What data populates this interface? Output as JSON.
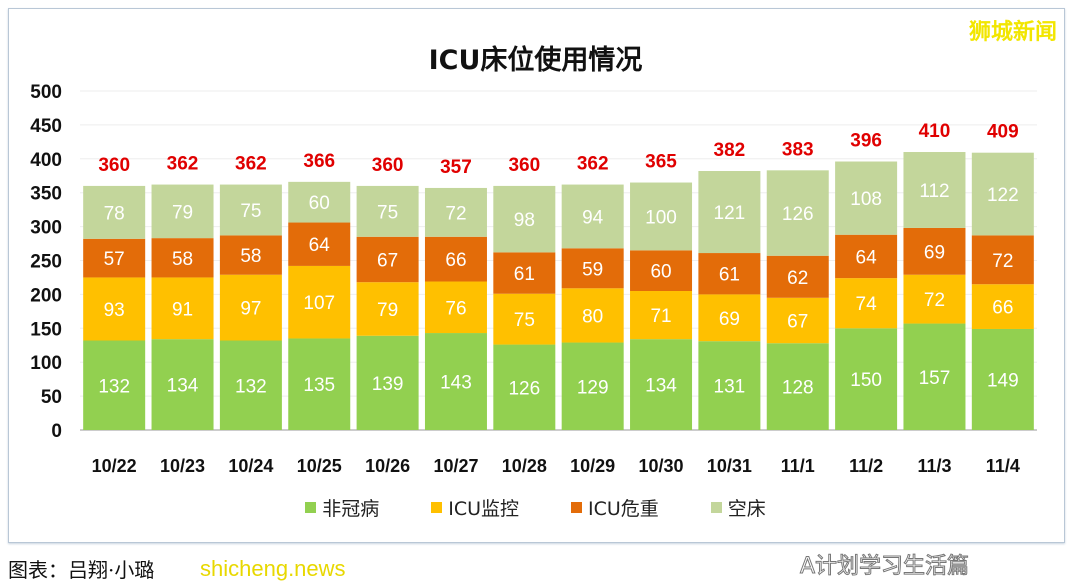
{
  "brand": "狮城新闻",
  "caption": "图表：吕翔·小璐",
  "watermarks": [
    "shicheng.news",
    "A计划学习生活篇"
  ],
  "chart_data": {
    "type": "bar",
    "stacked": true,
    "title": "ICU床位使用情况",
    "categories": [
      "10/22",
      "10/23",
      "10/24",
      "10/25",
      "10/26",
      "10/27",
      "10/28",
      "10/29",
      "10/30",
      "10/31",
      "11/1",
      "11/2",
      "11/3",
      "11/4"
    ],
    "series": [
      {
        "name": "非冠病",
        "color": "#92d050",
        "values": [
          132,
          134,
          132,
          135,
          139,
          143,
          126,
          129,
          134,
          131,
          128,
          150,
          157,
          149
        ]
      },
      {
        "name": "ICU监控",
        "color": "#ffc000",
        "values": [
          93,
          91,
          97,
          107,
          79,
          76,
          75,
          80,
          71,
          69,
          67,
          74,
          72,
          66
        ]
      },
      {
        "name": "ICU危重",
        "color": "#e36c09",
        "values": [
          57,
          58,
          58,
          64,
          67,
          66,
          61,
          59,
          60,
          61,
          62,
          64,
          69,
          72
        ]
      },
      {
        "name": "空床",
        "color": "#c3d69b",
        "values": [
          78,
          79,
          75,
          60,
          75,
          72,
          98,
          94,
          100,
          121,
          126,
          108,
          112,
          122
        ]
      }
    ],
    "totals": [
      360,
      362,
      362,
      366,
      360,
      357,
      360,
      362,
      365,
      382,
      383,
      396,
      410,
      409
    ],
    "total_color": "#e00000",
    "yticks": [
      0,
      50,
      100,
      150,
      200,
      250,
      300,
      350,
      400,
      450,
      500
    ],
    "ylim": [
      0,
      500
    ],
    "grid": true,
    "legend": "bottom"
  }
}
